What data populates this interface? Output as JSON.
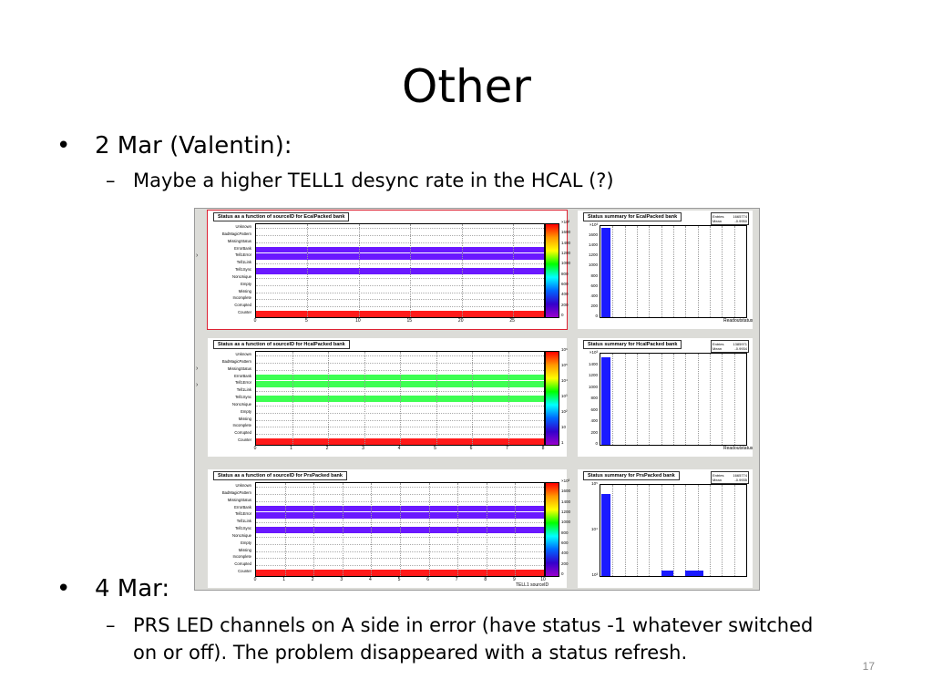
{
  "slide": {
    "title": "Other",
    "bullet1": "2 Mar (Valentin):",
    "sub1": "Maybe a higher TELL1 desync rate in the HCAL (?)",
    "bullet2": "4 Mar:",
    "sub2a": "PRS LED channels on A side in error (have status -1 whatever switched",
    "sub2b": "on or off). The problem disappeared with a status refresh.",
    "page_number": "17",
    "bullet_glyph": "•",
    "dash_glyph": "–"
  },
  "row_labels": [
    "Unknown",
    "BadMagicPattern",
    "MissingStatus",
    "ErrorBank",
    "Tell1Error",
    "Tell1Link",
    "Tell1Sync",
    "NonUnique",
    "Empty",
    "Missing",
    "Incomplete",
    "Corrupted",
    "Counter"
  ],
  "panels": [
    {
      "title": "Status as a function of sourceID for EcalPacked bank",
      "xticks": [
        "0",
        "5",
        "10",
        "15",
        "20",
        "25"
      ],
      "zticks": [
        "×10³",
        "1600",
        "1400",
        "1200",
        "1000",
        "800",
        "600",
        "400",
        "200",
        "0"
      ],
      "x_axis_label": "",
      "summary_title": "Status summary for EcalPacked bank",
      "summary_stats": [
        [
          "Entries",
          "1665774"
        ],
        [
          "Mean",
          "-0.9950"
        ]
      ],
      "summary_yticks": [
        "×10³",
        "1600",
        "1400",
        "1200",
        "1000",
        "800",
        "600",
        "400",
        "200",
        "0"
      ],
      "summary_xlabel": "Readoutstatus"
    },
    {
      "title": "Status as a function of sourceID for HcalPacked bank",
      "xticks": [
        "0",
        "1",
        "2",
        "3",
        "4",
        "5",
        "6",
        "7",
        "8"
      ],
      "zticks": [
        "10⁶",
        "10⁵",
        "10⁴",
        "10³",
        "10²",
        "10",
        "1"
      ],
      "x_axis_label": "",
      "summary_title": "Status summary for HcalPacked bank",
      "summary_stats": [
        [
          "Entries",
          "1385971"
        ],
        [
          "Mean",
          "-0.9934"
        ]
      ],
      "summary_yticks": [
        "×10³",
        "1400",
        "1200",
        "1000",
        "800",
        "600",
        "400",
        "200",
        "0"
      ],
      "summary_xlabel": "Readoutstatus"
    },
    {
      "title": "Status as a function of sourceID for PrsPacked bank",
      "xticks": [
        "0",
        "1",
        "2",
        "3",
        "4",
        "5",
        "6",
        "7",
        "8",
        "9",
        "10"
      ],
      "zticks": [
        "×10³",
        "1600",
        "1400",
        "1200",
        "1000",
        "800",
        "600",
        "400",
        "200",
        "0"
      ],
      "x_axis_label": "TELL1 sourceID",
      "summary_title": "Status summary for PrsPacked bank",
      "summary_stats": [
        [
          "Entries",
          "1665774"
        ],
        [
          "Mean",
          "-0.9935"
        ]
      ],
      "summary_yticks": [
        "10⁵",
        "10⁴",
        "10³"
      ],
      "summary_xlabel": ""
    }
  ],
  "chart_data": [
    {
      "type": "heatmap",
      "title": "Status as a function of sourceID for EcalPacked bank",
      "filled_rows": {
        "ErrorBank": "purple",
        "Tell1Error": "purple",
        "Tell1Sync": "purple",
        "Counter": "red"
      },
      "x_range": [
        0,
        28
      ]
    },
    {
      "type": "bar",
      "title": "Status summary for EcalPacked bank",
      "categories": [
        "Unknown"
      ],
      "values": [
        1666
      ],
      "ylim": [
        0,
        1700
      ],
      "xlabel": "Readoutstatus"
    },
    {
      "type": "heatmap",
      "title": "Status as a function of sourceID for HcalPacked bank",
      "filled_rows": {
        "ErrorBank": "green",
        "Tell1Error": "green",
        "Tell1Sync": "green",
        "Counter": "red"
      },
      "x_range": [
        0,
        8
      ]
    },
    {
      "type": "bar",
      "title": "Status summary for HcalPacked bank",
      "categories": [
        "Unknown"
      ],
      "values": [
        1386
      ],
      "ylim": [
        0,
        1450
      ],
      "xlabel": "Readoutstatus"
    },
    {
      "type": "heatmap",
      "title": "Status as a function of sourceID for PrsPacked bank",
      "filled_rows": {
        "ErrorBank": "purple",
        "Tell1Error": "purple",
        "Tell1Sync": "purple",
        "Counter": "red"
      },
      "x_range": [
        0,
        10
      ],
      "xlabel": "TELL1 sourceID"
    },
    {
      "type": "bar",
      "title": "Status summary for PrsPacked bank",
      "log_scale": true,
      "note": "tall bar at first bin; small bars near bins 5 and 7"
    }
  ],
  "colors": {
    "purple": "#6a18ff",
    "green": "#3dff52",
    "red": "#ff1a1a",
    "bar": "#1a1aff"
  }
}
